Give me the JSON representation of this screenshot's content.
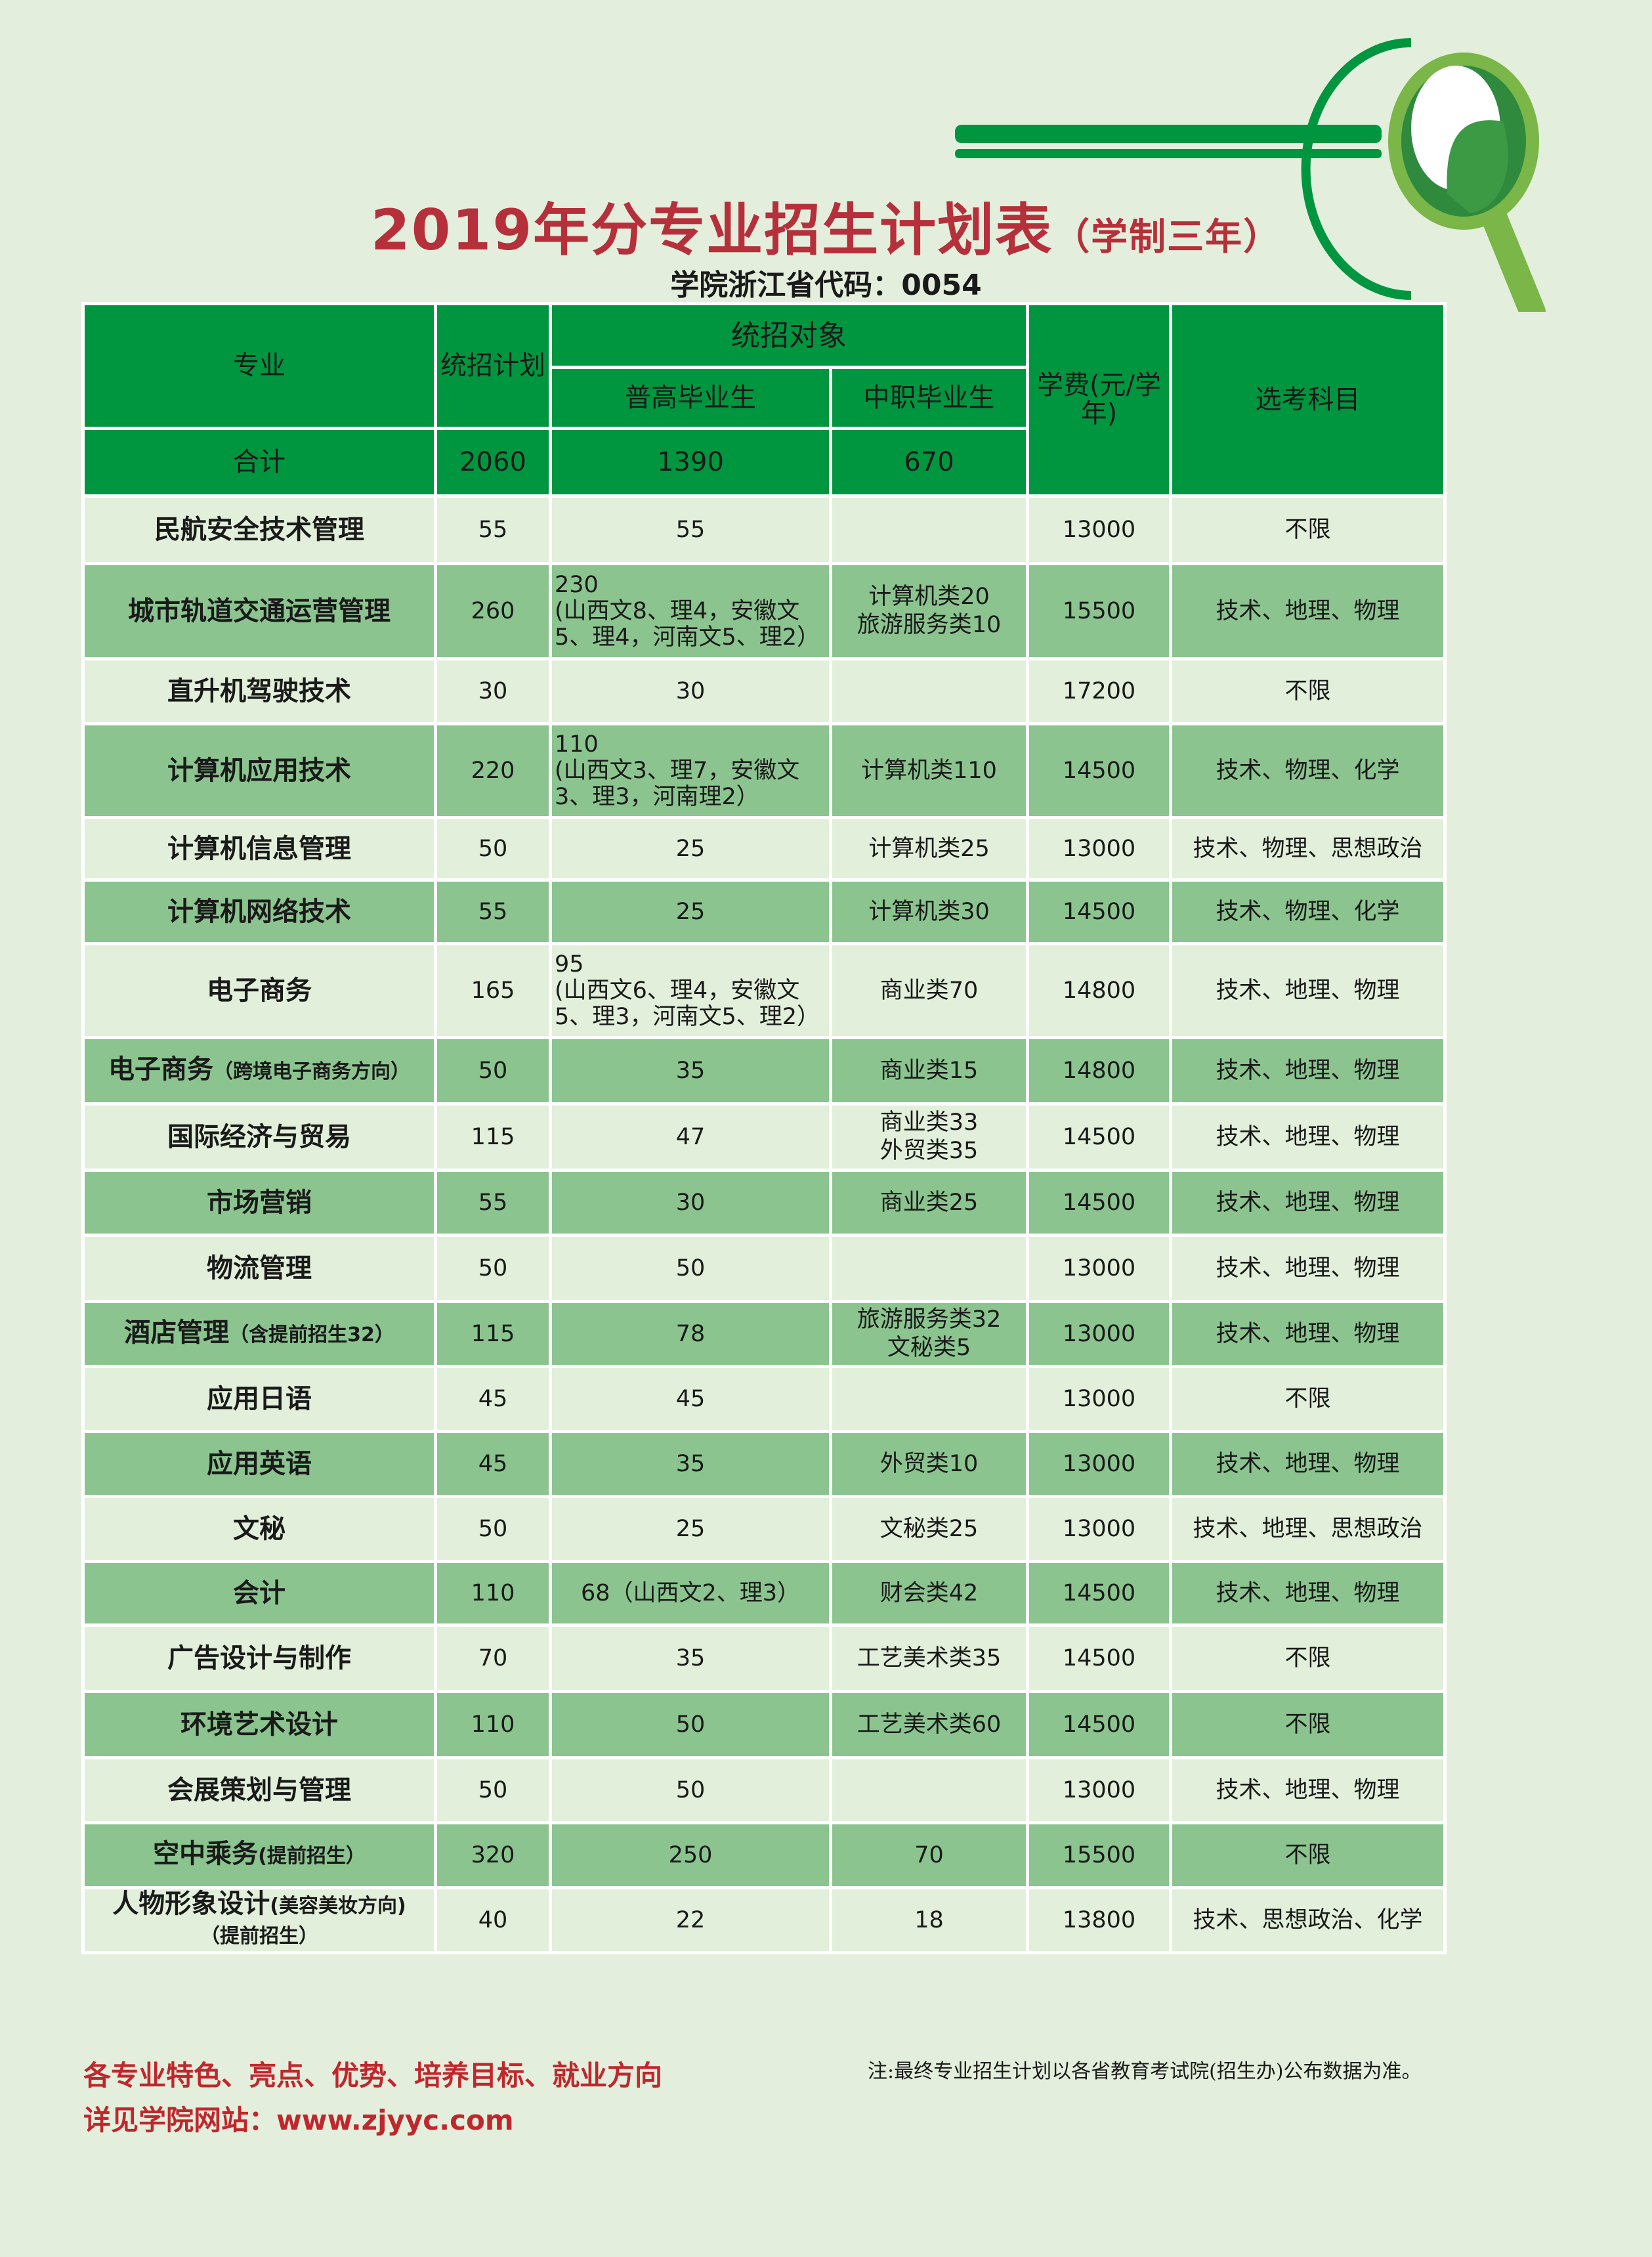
{
  "title": {
    "main": "2019年分专业招生计划表",
    "sub": "（学制三年）"
  },
  "school_code": "学院浙江省代码：0054",
  "colors": {
    "header": "#009640",
    "row_light": "#e2efda",
    "row_dark": "#8bc48f",
    "title": "#b5303a",
    "background": "#e3efdc"
  },
  "table": {
    "headers": {
      "major": "专业",
      "plan": "统招计划",
      "target": "统招对象",
      "general_hs": "普高毕业生",
      "vocational": "中职毕业生",
      "tuition": "学费(元/学年)",
      "subjects": "选考科目"
    },
    "total": {
      "label": "合计",
      "plan": "2060",
      "general_hs": "1390",
      "vocational": "670"
    },
    "rows": [
      {
        "major": "民航安全技术管理",
        "note": "",
        "plan": "55",
        "general_hs": "55",
        "vocational": "",
        "tuition": "13000",
        "subjects": "不限"
      },
      {
        "major": "城市轨道交通运营管理",
        "note": "",
        "plan": "260",
        "general_hs": "230\n(山西文8、理4，安徽文5、理4，河南文5、理2）",
        "vocational": "计算机类20\n旅游服务类10",
        "tuition": "15500",
        "subjects": "技术、地理、物理"
      },
      {
        "major": "直升机驾驶技术",
        "note": "",
        "plan": "30",
        "general_hs": "30",
        "vocational": "",
        "tuition": "17200",
        "subjects": "不限"
      },
      {
        "major": "计算机应用技术",
        "note": "",
        "plan": "220",
        "general_hs": "110\n(山西文3、理7，安徽文3、理3，河南理2）",
        "vocational": "计算机类110",
        "tuition": "14500",
        "subjects": "技术、物理、化学"
      },
      {
        "major": "计算机信息管理",
        "note": "",
        "plan": "50",
        "general_hs": "25",
        "vocational": "计算机类25",
        "tuition": "13000",
        "subjects": "技术、物理、思想政治"
      },
      {
        "major": "计算机网络技术",
        "note": "",
        "plan": "55",
        "general_hs": "25",
        "vocational": "计算机类30",
        "tuition": "14500",
        "subjects": "技术、物理、化学"
      },
      {
        "major": "电子商务",
        "note": "",
        "plan": "165",
        "general_hs": "95\n(山西文6、理4，安徽文5、理3，河南文5、理2）",
        "vocational": "商业类70",
        "tuition": "14800",
        "subjects": "技术、地理、物理"
      },
      {
        "major": "电子商务",
        "note": "（跨境电子商务方向）",
        "plan": "50",
        "general_hs": "35",
        "vocational": "商业类15",
        "tuition": "14800",
        "subjects": "技术、地理、物理"
      },
      {
        "major": "国际经济与贸易",
        "note": "",
        "plan": "115",
        "general_hs": "47",
        "vocational": "商业类33\n外贸类35",
        "tuition": "14500",
        "subjects": "技术、地理、物理"
      },
      {
        "major": "市场营销",
        "note": "",
        "plan": "55",
        "general_hs": "30",
        "vocational": "商业类25",
        "tuition": "14500",
        "subjects": "技术、地理、物理"
      },
      {
        "major": "物流管理",
        "note": "",
        "plan": "50",
        "general_hs": "50",
        "vocational": "",
        "tuition": "13000",
        "subjects": "技术、地理、物理"
      },
      {
        "major": "酒店管理",
        "note": "（含提前招生32）",
        "plan": "115",
        "general_hs": "78",
        "vocational": "旅游服务类32\n文秘类5",
        "tuition": "13000",
        "subjects": "技术、地理、物理"
      },
      {
        "major": "应用日语",
        "note": "",
        "plan": "45",
        "general_hs": "45",
        "vocational": "",
        "tuition": "13000",
        "subjects": "不限"
      },
      {
        "major": "应用英语",
        "note": "",
        "plan": "45",
        "general_hs": "35",
        "vocational": "外贸类10",
        "tuition": "13000",
        "subjects": "技术、地理、物理"
      },
      {
        "major": "文秘",
        "note": "",
        "plan": "50",
        "general_hs": "25",
        "vocational": "文秘类25",
        "tuition": "13000",
        "subjects": "技术、地理、思想政治"
      },
      {
        "major": "会计",
        "note": "",
        "plan": "110",
        "general_hs": "68（山西文2、理3）",
        "vocational": "财会类42",
        "tuition": "14500",
        "subjects": "技术、地理、物理"
      },
      {
        "major": "广告设计与制作",
        "note": "",
        "plan": "70",
        "general_hs": "35",
        "vocational": "工艺美术类35",
        "tuition": "14500",
        "subjects": "不限"
      },
      {
        "major": "环境艺术设计",
        "note": "",
        "plan": "110",
        "general_hs": "50",
        "vocational": "工艺美术类60",
        "tuition": "14500",
        "subjects": "不限"
      },
      {
        "major": "会展策划与管理",
        "note": "",
        "plan": "50",
        "general_hs": "50",
        "vocational": "",
        "tuition": "13000",
        "subjects": "技术、地理、物理"
      },
      {
        "major": "空中乘务",
        "note": "(提前招生）",
        "plan": "320",
        "general_hs": "250",
        "vocational": "70",
        "tuition": "15500",
        "subjects": "不限"
      },
      {
        "major": "人物形象设计",
        "note": "(美容美妆方向)\n（提前招生）",
        "plan": "40",
        "general_hs": "22",
        "vocational": "18",
        "tuition": "13800",
        "subjects": "技术、思想政治、化学"
      }
    ]
  },
  "footer": {
    "line1": "各专业特色、亮点、优势、培养目标、就业方向",
    "line2": "详见学院网站：www.zjyyc.com",
    "note": "注:最终专业招生计划以各省教育考试院(招生办)公布数据为准。"
  }
}
